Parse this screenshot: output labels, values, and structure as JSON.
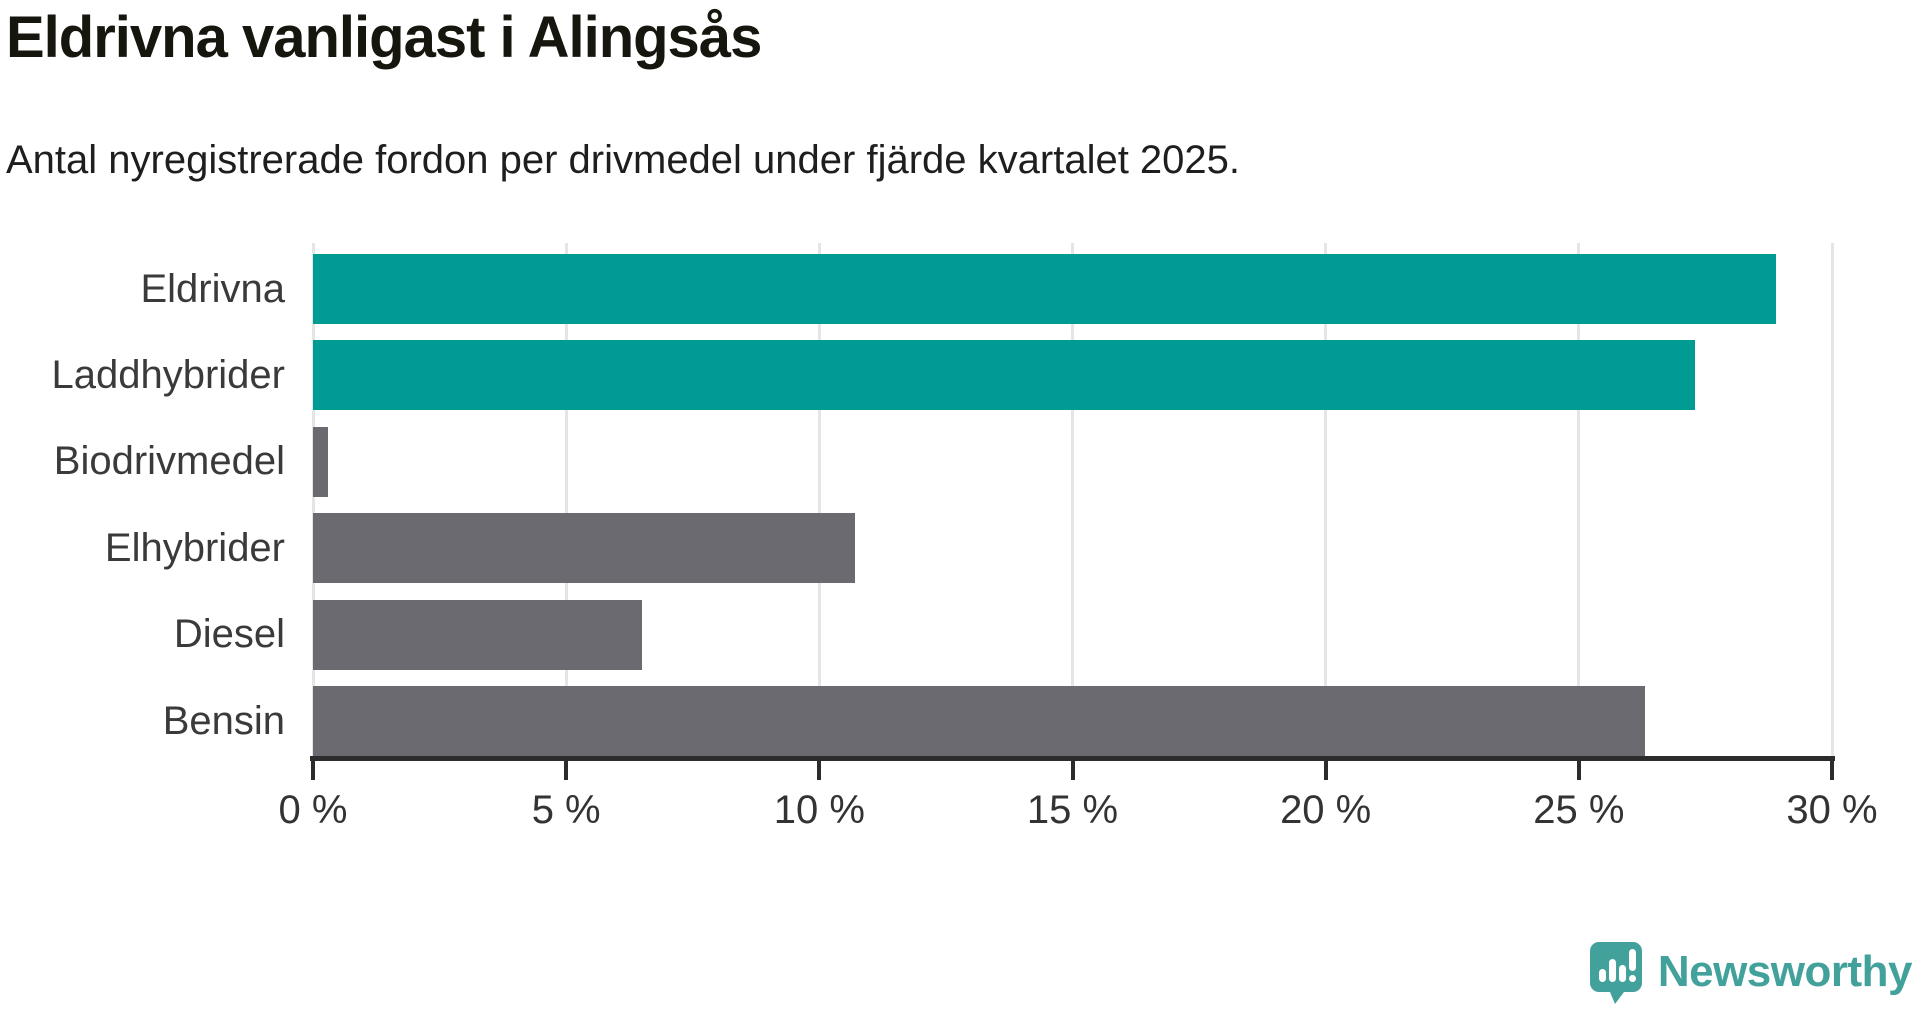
{
  "header": {
    "title": "Eldrivna vanligast i Alingsås",
    "subtitle": "Antal nyregistrerade fordon per drivmedel under fjärde kvartalet 2025."
  },
  "chart_data": {
    "type": "bar",
    "orientation": "horizontal",
    "title": "Eldrivna vanligast i Alingsås",
    "subtitle": "Antal nyregistrerade fordon per drivmedel under fjärde kvartalet 2025.",
    "categories": [
      "Eldrivna",
      "Laddhybrider",
      "Biodrivmedel",
      "Elhybrider",
      "Diesel",
      "Bensin"
    ],
    "values": [
      28.9,
      27.3,
      0.3,
      10.7,
      6.5,
      26.3
    ],
    "unit": "%",
    "bar_colors": [
      "#009c94",
      "#009c94",
      "#6b6a70",
      "#6b6a70",
      "#6b6a70",
      "#6b6a70"
    ],
    "highlight_color": "#009c94",
    "default_color": "#6b6a70",
    "xlabel": "",
    "ylabel": "",
    "xlim": [
      0,
      30
    ],
    "x_ticks": [
      0,
      5,
      10,
      15,
      20,
      25,
      30
    ],
    "x_tick_labels": [
      "0 %",
      "5 %",
      "10 %",
      "15 %",
      "20 %",
      "25 %",
      "30 %"
    ],
    "grid": "vertical",
    "gridline_color": "#e5e5e5",
    "axis_color": "#2c2c2c",
    "legend": "none"
  },
  "footer": {
    "brand": "Newsworthy",
    "brand_color": "#42a19b",
    "logo_icon": "speech-bubble-bar-chart-icon"
  }
}
